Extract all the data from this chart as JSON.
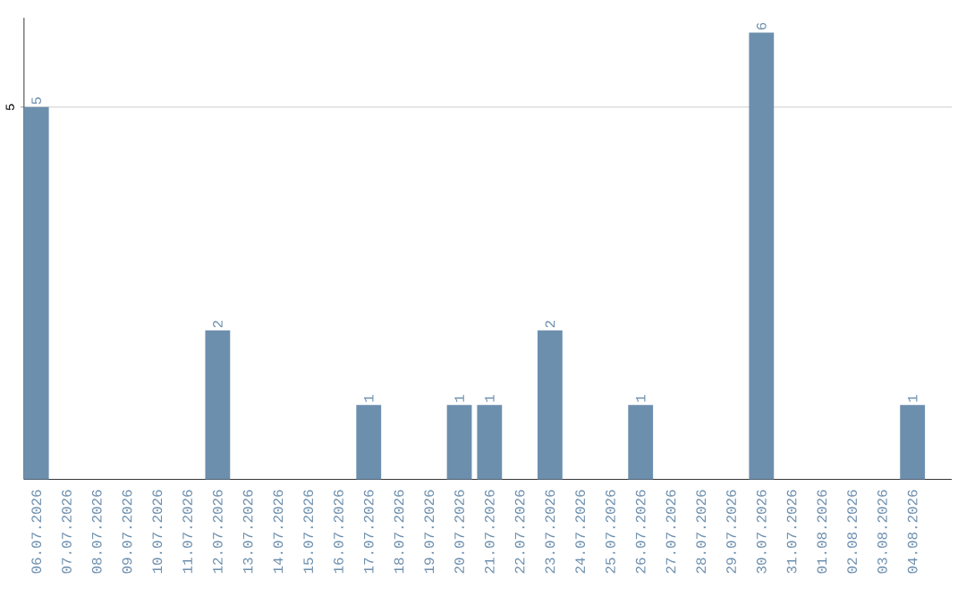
{
  "chart_data": {
    "type": "bar",
    "categories": [
      "06.07.2026",
      "07.07.2026",
      "08.07.2026",
      "09.07.2026",
      "10.07.2026",
      "11.07.2026",
      "12.07.2026",
      "13.07.2026",
      "14.07.2026",
      "15.07.2026",
      "16.07.2026",
      "17.07.2026",
      "18.07.2026",
      "19.07.2026",
      "20.07.2026",
      "21.07.2026",
      "22.07.2026",
      "23.07.2026",
      "24.07.2026",
      "25.07.2026",
      "26.07.2026",
      "27.07.2026",
      "28.07.2026",
      "29.07.2026",
      "30.07.2026",
      "31.07.2026",
      "01.08.2026",
      "02.08.2026",
      "03.08.2026",
      "04.08.2026"
    ],
    "values": [
      5,
      0,
      0,
      0,
      0,
      0,
      2,
      0,
      0,
      0,
      0,
      1,
      0,
      0,
      1,
      1,
      0,
      2,
      0,
      0,
      1,
      0,
      0,
      0,
      6,
      0,
      0,
      0,
      0,
      1
    ],
    "value_labels": [
      "5",
      null,
      null,
      null,
      null,
      null,
      "2",
      null,
      null,
      null,
      null,
      "1",
      null,
      null,
      "1",
      "1",
      null,
      "2",
      null,
      null,
      "1",
      null,
      null,
      null,
      "6",
      null,
      null,
      null,
      null,
      "1"
    ],
    "color": "#6d8fae",
    "ylim": [
      0,
      6.2
    ],
    "yticks": [
      5
    ],
    "grid": "y"
  }
}
